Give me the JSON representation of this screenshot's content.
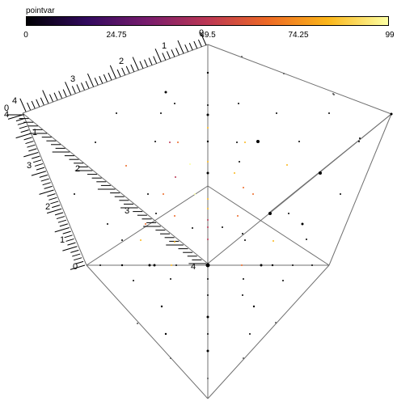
{
  "colorbar": {
    "title": "pointvar",
    "ticks": [
      "0",
      "24.75",
      "49.5",
      "74.25",
      "99"
    ],
    "colormap": [
      "#000004",
      "#320a5e",
      "#781c6d",
      "#bc3754",
      "#ed6925",
      "#fbb61a",
      "#fcffa4"
    ]
  },
  "axes": {
    "top_axis_labels": [
      "0",
      "1",
      "2",
      "3",
      "4"
    ],
    "left_axis_labels": [
      "0",
      "1",
      "2",
      "3",
      "4"
    ],
    "inner_axis_labels": [
      "0",
      "1",
      "2",
      "3",
      "4"
    ]
  },
  "colors": {
    "line": "#707070",
    "tick": "#000000"
  }
}
